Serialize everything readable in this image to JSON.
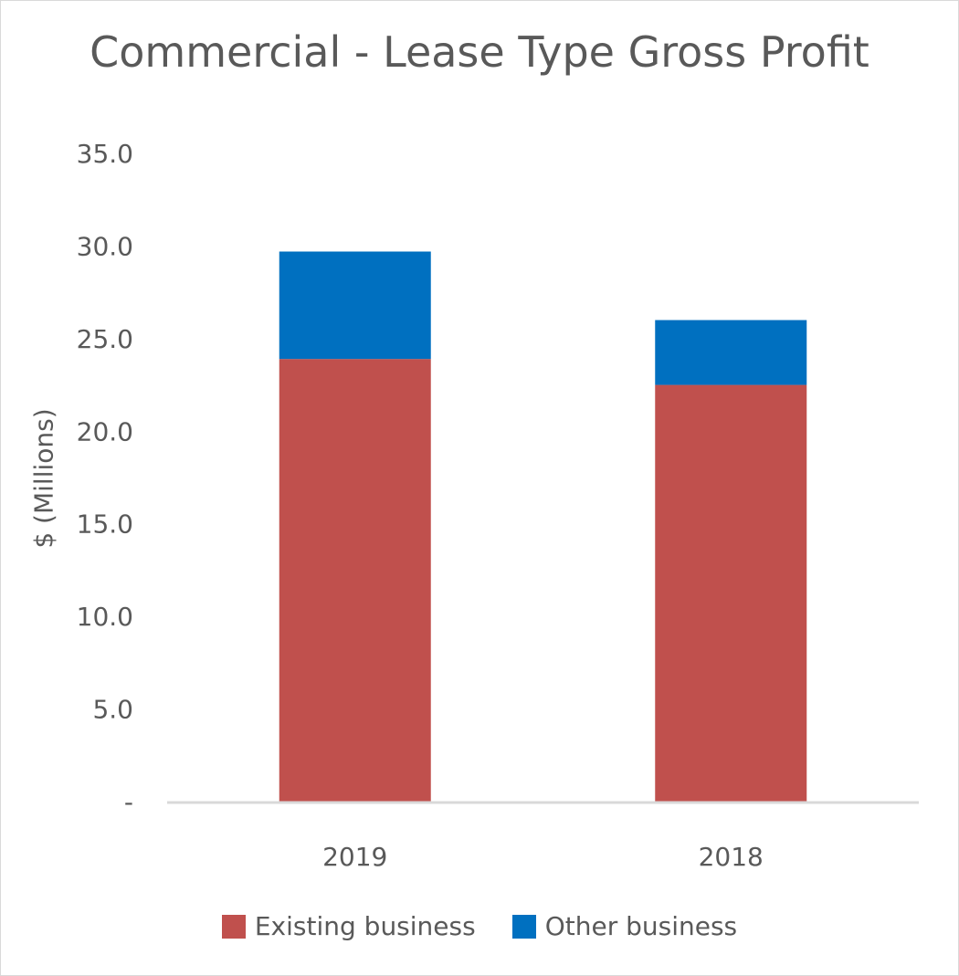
{
  "chart_data": {
    "type": "bar",
    "stacked": true,
    "title": "Commercial - Lease Type Gross Profit",
    "xlabel": "",
    "ylabel": "$ (Millions)",
    "ylim": [
      0,
      35
    ],
    "yticks": [
      0,
      5,
      10,
      15,
      20,
      25,
      30,
      35
    ],
    "ytick_labels": [
      "-",
      "5.0",
      "10.0",
      "15.0",
      "20.0",
      "25.0",
      "30.0",
      "35.0"
    ],
    "categories": [
      "2019",
      "2018"
    ],
    "series": [
      {
        "name": "Existing business",
        "color": "#c0504d",
        "values": [
          23.9,
          22.5
        ]
      },
      {
        "name": "Other business",
        "color": "#0070c0",
        "values": [
          5.8,
          3.5
        ]
      }
    ],
    "grid": false,
    "legend_position": "bottom"
  }
}
